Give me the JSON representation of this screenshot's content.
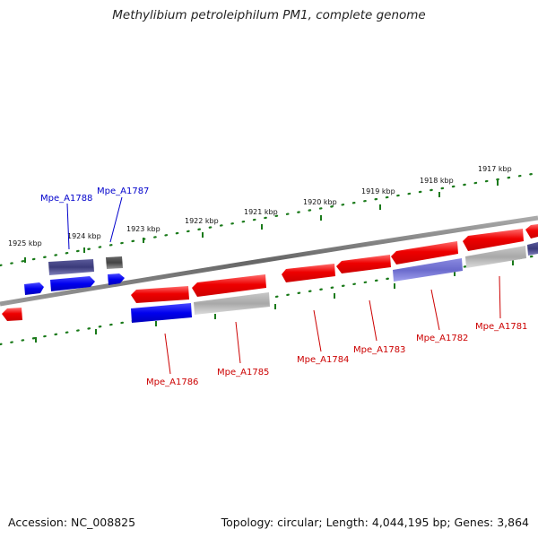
{
  "title": "Methylibium petroleiphilum PM1, complete genome",
  "footer": {
    "accession": "Accession: NC_008825",
    "topology": "Topology: circular; Length: 4,044,195 bp; Genes: 3,864"
  },
  "ruler": {
    "labels": [
      "1925 kbp",
      "1924 kbp",
      "1923 kbp",
      "1922 kbp",
      "1921 kbp",
      "1920 kbp",
      "1919 kbp",
      "1918 kbp",
      "1917 kbp"
    ]
  },
  "genes_top_labels": [
    "Mpe_A1788",
    "Mpe_A1787"
  ],
  "genes_bottom_labels": [
    "Mpe_A1786",
    "Mpe_A1785",
    "Mpe_A1784",
    "Mpe_A1783",
    "Mpe_A1782",
    "Mpe_A1781"
  ],
  "colors": {
    "forward_red": "#ee0000",
    "reverse_blue": "#0000ee",
    "grey": "#a8a8a8",
    "navy": "#3a3a8a",
    "tick_green": "#1a7a1a",
    "backbone": "#777777"
  }
}
